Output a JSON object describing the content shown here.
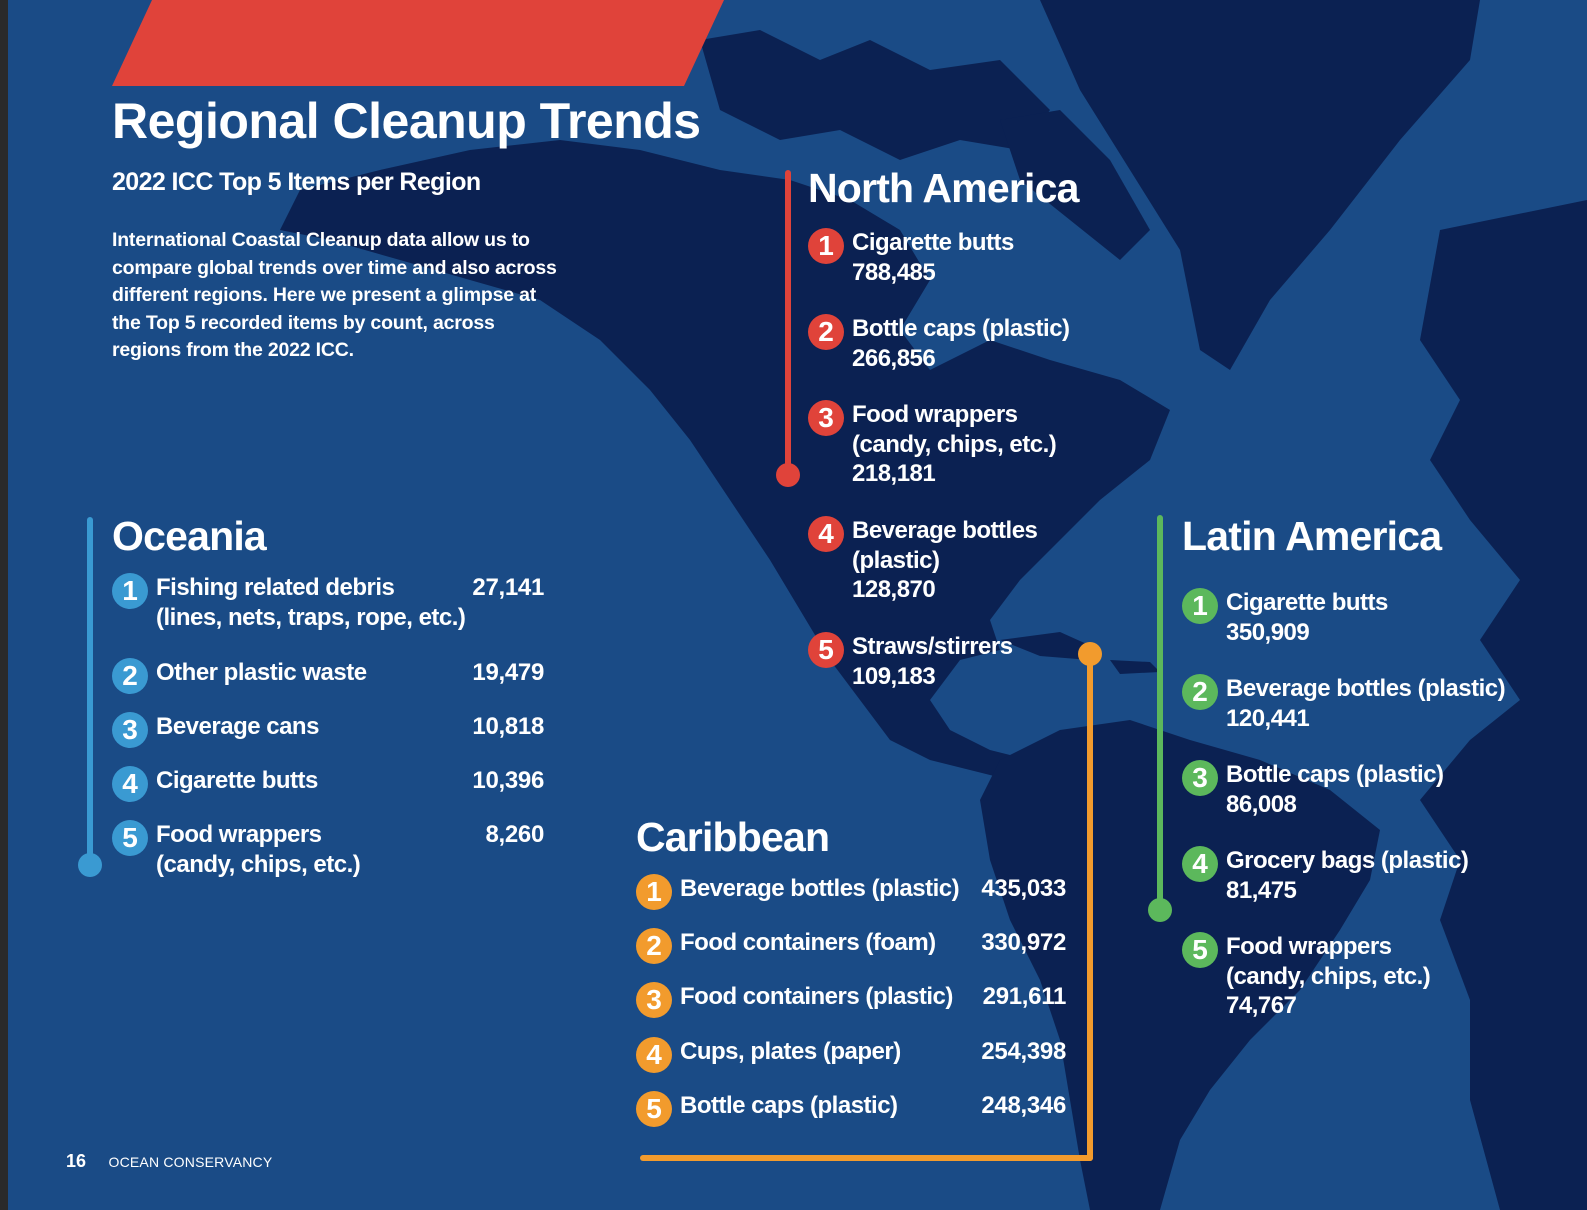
{
  "colors": {
    "ocean": "#1a4b86",
    "land": "#0b2152",
    "banner": "#e0433a",
    "north_america": "#e0433a",
    "oceania": "#3a9ad2",
    "latin_america": "#5cb85c",
    "caribbean": "#f29b2d"
  },
  "title": "Regional Cleanup Trends",
  "subtitle": "2022 ICC Top 5 Items per Region",
  "intro": "International Coastal Cleanup data allow us to compare global trends over time and also across different regions. Here we present a glimpse at the Top 5 recorded items by count, across regions from the 2022 ICC.",
  "north_america": {
    "name": "North America",
    "items": [
      {
        "rank": "1",
        "label": "Cigarette butts",
        "value": "788,485"
      },
      {
        "rank": "2",
        "label": "Bottle caps (plastic)",
        "value": "266,856"
      },
      {
        "rank": "3",
        "label": "Food wrappers",
        "label2": "(candy, chips, etc.)",
        "value": "218,181"
      },
      {
        "rank": "4",
        "label": "Beverage bottles",
        "label2": "(plastic)",
        "value": "128,870"
      },
      {
        "rank": "5",
        "label": "Straws/stirrers",
        "value": "109,183"
      }
    ]
  },
  "oceania": {
    "name": "Oceania",
    "items": [
      {
        "rank": "1",
        "label": "Fishing related debris",
        "label2": "(lines, nets, traps, rope, etc.)",
        "value": "27,141"
      },
      {
        "rank": "2",
        "label": "Other plastic waste",
        "value": "19,479"
      },
      {
        "rank": "3",
        "label": "Beverage cans",
        "value": "10,818"
      },
      {
        "rank": "4",
        "label": "Cigarette butts",
        "value": "10,396"
      },
      {
        "rank": "5",
        "label": "Food wrappers",
        "label2": "(candy, chips, etc.)",
        "value": "8,260"
      }
    ]
  },
  "latin_america": {
    "name": "Latin America",
    "items": [
      {
        "rank": "1",
        "label": "Cigarette butts",
        "value": "350,909"
      },
      {
        "rank": "2",
        "label": "Beverage bottles (plastic)",
        "value": "120,441"
      },
      {
        "rank": "3",
        "label": "Bottle caps (plastic)",
        "value": "86,008"
      },
      {
        "rank": "4",
        "label": "Grocery bags (plastic)",
        "value": "81,475"
      },
      {
        "rank": "5",
        "label": "Food wrappers",
        "label2": "(candy, chips, etc.)",
        "value": "74,767"
      }
    ]
  },
  "caribbean": {
    "name": "Caribbean",
    "items": [
      {
        "rank": "1",
        "label": "Beverage bottles (plastic)",
        "value": "435,033"
      },
      {
        "rank": "2",
        "label": "Food containers (foam)",
        "value": "330,972"
      },
      {
        "rank": "3",
        "label": "Food containers (plastic)",
        "value": "291,611"
      },
      {
        "rank": "4",
        "label": "Cups, plates (paper)",
        "value": "254,398"
      },
      {
        "rank": "5",
        "label": "Bottle caps (plastic)",
        "value": "248,346"
      }
    ]
  },
  "footer": {
    "page_number": "16",
    "organization": "OCEAN CONSERVANCY"
  }
}
